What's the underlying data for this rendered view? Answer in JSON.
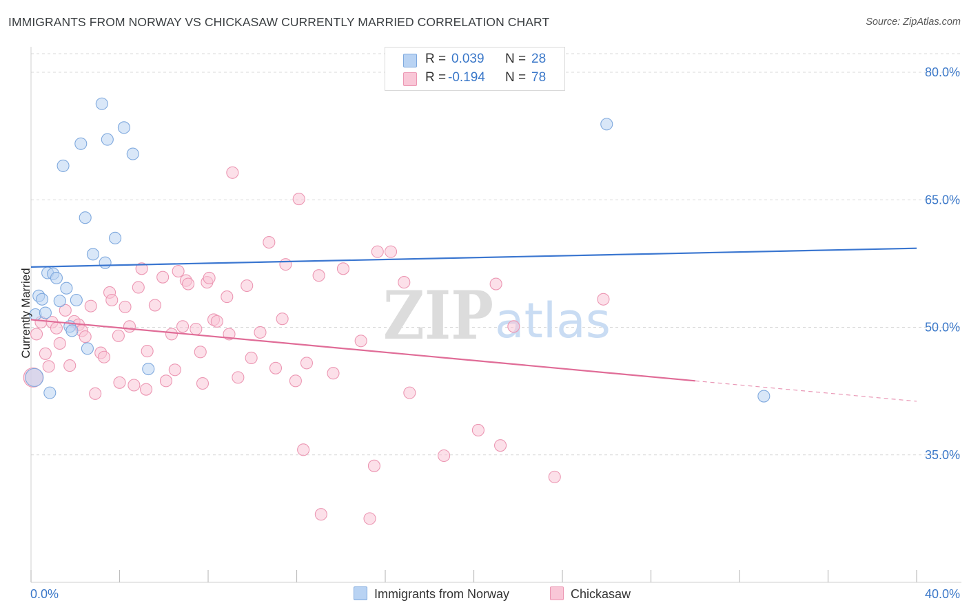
{
  "header": {
    "title": "IMMIGRANTS FROM NORWAY VS CHICKASAW CURRENTLY MARRIED CORRELATION CHART",
    "source": "Source: ZipAtlas.com"
  },
  "legend": {
    "r_label": "R =",
    "n_label": "N =",
    "rows": [
      {
        "r": "0.039",
        "n": "28"
      },
      {
        "r": "-0.194",
        "n": "78"
      }
    ]
  },
  "watermark": {
    "zip": "ZIP",
    "atlas": "atlas"
  },
  "colors": {
    "norway_fill": "#b9d3f3",
    "norway_stroke": "#7fa9de",
    "norway_line": "#3a76d0",
    "chickasaw_fill": "#f9c7d7",
    "chickasaw_stroke": "#ec97b3",
    "chickasaw_line": "#e06c97",
    "axis_label": "#3b78c9",
    "grid": "#d8d8d8"
  },
  "chart_data": {
    "type": "scatter",
    "title": "IMMIGRANTS FROM NORWAY VS CHICKASAW CURRENTLY MARRIED CORRELATION CHART",
    "ylabel": "Currently Married",
    "xlim": [
      0,
      40
    ],
    "ylim": [
      20,
      83
    ],
    "x_tick_labels": [
      "0.0%",
      "40.0%"
    ],
    "y_ticks": [
      35,
      50,
      65,
      80
    ],
    "y_tick_labels": [
      "35.0%",
      "50.0%",
      "65.0%",
      "80.0%"
    ],
    "grid": "horizontal dashed",
    "legend_position": "top-center",
    "series": [
      {
        "name": "Immigrants from Norway",
        "r": 0.039,
        "n": 28,
        "trend": {
          "x": [
            0,
            40
          ],
          "y": [
            57.1,
            59.3
          ]
        },
        "points": [
          [
            0.2,
            51.5
          ],
          [
            0.35,
            53.7
          ],
          [
            0.5,
            53.3
          ],
          [
            0.65,
            51.7
          ],
          [
            0.75,
            56.4
          ],
          [
            0.85,
            42.3
          ],
          [
            1.0,
            56.3
          ],
          [
            1.15,
            55.8
          ],
          [
            1.3,
            53.1
          ],
          [
            1.45,
            69.0
          ],
          [
            1.6,
            54.6
          ],
          [
            1.75,
            50.1
          ],
          [
            1.85,
            49.6
          ],
          [
            2.05,
            53.2
          ],
          [
            2.25,
            71.6
          ],
          [
            2.45,
            62.9
          ],
          [
            2.55,
            47.5
          ],
          [
            2.8,
            58.6
          ],
          [
            3.2,
            76.3
          ],
          [
            3.35,
            57.6
          ],
          [
            3.45,
            72.1
          ],
          [
            3.8,
            60.5
          ],
          [
            4.2,
            73.5
          ],
          [
            4.6,
            70.4
          ],
          [
            5.3,
            45.1
          ],
          [
            26.0,
            73.9
          ],
          [
            33.1,
            41.9
          ],
          [
            0.15,
            44.1
          ]
        ]
      },
      {
        "name": "Chickasaw",
        "r": -0.194,
        "n": 78,
        "trend": {
          "x": [
            0,
            30
          ],
          "y": [
            50.9,
            43.7
          ]
        },
        "trend_dashed": {
          "x": [
            30,
            40
          ],
          "y": [
            43.7,
            41.3
          ]
        },
        "points": [
          [
            0.1,
            44.1
          ],
          [
            0.25,
            49.2
          ],
          [
            0.45,
            50.6
          ],
          [
            0.65,
            46.9
          ],
          [
            0.8,
            45.4
          ],
          [
            0.95,
            50.6
          ],
          [
            1.15,
            49.9
          ],
          [
            1.3,
            48.1
          ],
          [
            1.55,
            52.0
          ],
          [
            1.75,
            45.5
          ],
          [
            1.95,
            50.7
          ],
          [
            2.15,
            50.3
          ],
          [
            2.3,
            49.6
          ],
          [
            2.45,
            48.9
          ],
          [
            2.7,
            52.5
          ],
          [
            2.9,
            42.2
          ],
          [
            3.15,
            47.0
          ],
          [
            3.3,
            46.5
          ],
          [
            3.55,
            54.1
          ],
          [
            3.65,
            53.2
          ],
          [
            3.95,
            49.0
          ],
          [
            4.0,
            43.5
          ],
          [
            4.25,
            52.4
          ],
          [
            4.45,
            50.1
          ],
          [
            4.65,
            43.2
          ],
          [
            4.85,
            54.7
          ],
          [
            5.0,
            56.9
          ],
          [
            5.2,
            42.7
          ],
          [
            5.25,
            47.2
          ],
          [
            5.6,
            52.6
          ],
          [
            5.95,
            55.9
          ],
          [
            6.1,
            43.7
          ],
          [
            6.35,
            49.2
          ],
          [
            6.5,
            45.0
          ],
          [
            6.65,
            56.6
          ],
          [
            6.85,
            50.1
          ],
          [
            7.0,
            55.5
          ],
          [
            7.1,
            55.1
          ],
          [
            7.45,
            49.8
          ],
          [
            7.65,
            47.1
          ],
          [
            7.75,
            43.4
          ],
          [
            7.95,
            55.3
          ],
          [
            8.05,
            55.8
          ],
          [
            8.25,
            50.9
          ],
          [
            8.4,
            50.7
          ],
          [
            8.85,
            53.6
          ],
          [
            8.95,
            49.2
          ],
          [
            9.1,
            68.2
          ],
          [
            9.35,
            44.1
          ],
          [
            9.75,
            54.9
          ],
          [
            9.95,
            46.4
          ],
          [
            10.35,
            49.4
          ],
          [
            10.75,
            60.0
          ],
          [
            11.05,
            45.2
          ],
          [
            11.35,
            51.0
          ],
          [
            11.5,
            57.4
          ],
          [
            11.95,
            43.7
          ],
          [
            12.1,
            65.1
          ],
          [
            12.3,
            35.6
          ],
          [
            12.45,
            45.8
          ],
          [
            13.0,
            56.1
          ],
          [
            13.1,
            28.0
          ],
          [
            13.65,
            44.6
          ],
          [
            14.1,
            56.9
          ],
          [
            14.9,
            48.4
          ],
          [
            15.3,
            27.5
          ],
          [
            15.5,
            33.7
          ],
          [
            15.65,
            58.9
          ],
          [
            16.25,
            58.9
          ],
          [
            16.85,
            55.3
          ],
          [
            17.1,
            42.3
          ],
          [
            18.65,
            34.9
          ],
          [
            20.2,
            37.9
          ],
          [
            21.0,
            55.1
          ],
          [
            21.2,
            36.1
          ],
          [
            21.8,
            50.1
          ],
          [
            23.65,
            32.4
          ],
          [
            25.85,
            53.3
          ]
        ]
      }
    ]
  }
}
